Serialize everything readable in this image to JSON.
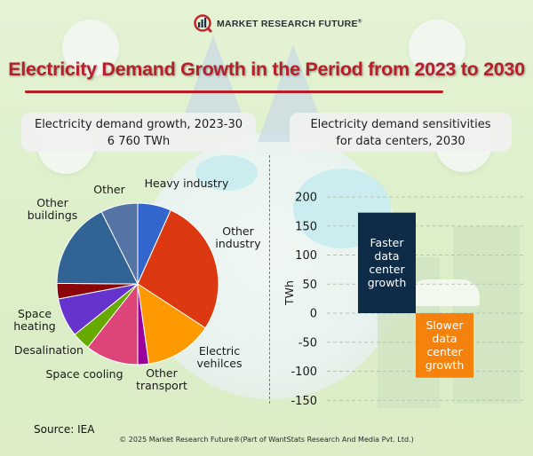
{
  "header": {
    "brand_name": "MARKET RESEARCH FUTURE",
    "brand_mark": "®",
    "title": "Electricity Demand Growth in the Period from 2023 to 2030"
  },
  "left_panel": {
    "heading_line1": "Electricity demand growth, 2023-30",
    "heading_line2": "6 760 TWh"
  },
  "right_panel": {
    "heading_line1": "Electricity demand sensitivities",
    "heading_line2": "for data centers, 2030"
  },
  "footer": {
    "source": "Source: IEA",
    "copyright": "© 2025 Market Research Future®(Part of WantStats Research And Media Pvt. Ltd.)"
  },
  "colors": {
    "title_red": "#b5202a",
    "faster_bar": "#0e2c47",
    "slower_bar": "#f5820d"
  },
  "chart_data": [
    {
      "type": "pie",
      "title": "Electricity demand growth, 2023-30",
      "subtitle": "6 760 TWh",
      "start_angle_deg": 0,
      "direction": "clockwise",
      "slices": [
        {
          "label": "Heavy industry",
          "value": 6.7,
          "color": "#3366cc"
        },
        {
          "label": "Other industry",
          "value": 27.5,
          "color": "#dc3912"
        },
        {
          "label": "Electric vehilces",
          "value": 13.6,
          "color": "#ff9900"
        },
        {
          "label": "Other transport",
          "value": 2.2,
          "color": "#990099"
        },
        {
          "label": "Space cooling",
          "value": 10.6,
          "color": "#dd4477"
        },
        {
          "label": "Desalination",
          "value": 3.6,
          "color": "#66aa00"
        },
        {
          "label": "Space heating",
          "value": 7.8,
          "color": "#6633cc"
        },
        {
          "label": "",
          "value": 3.1,
          "color": "#8b0707"
        },
        {
          "label": "Other buildings",
          "value": 17.5,
          "color": "#316395"
        },
        {
          "label": "Other",
          "value": 7.4,
          "color": "#5574a6"
        }
      ],
      "value_unit": "percent of total (estimated)"
    },
    {
      "type": "bar",
      "title": "Electricity demand sensitivities for data centers, 2030",
      "categories": [
        "Faster data center growth",
        "Slower data center growth"
      ],
      "bar_labels": [
        [
          "Faster",
          "data",
          "center",
          "growth"
        ],
        [
          "Slower",
          "data",
          "center",
          "growth"
        ]
      ],
      "values": [
        173,
        -111
      ],
      "colors": [
        "#0e2c47",
        "#f5820d"
      ],
      "ylabel": "TWh",
      "xlabel": "",
      "ylim": [
        -150,
        200
      ],
      "yticks": [
        200,
        150,
        100,
        50,
        0,
        -50,
        -100,
        -150
      ],
      "grid": true,
      "grid_style": "dashed"
    }
  ]
}
